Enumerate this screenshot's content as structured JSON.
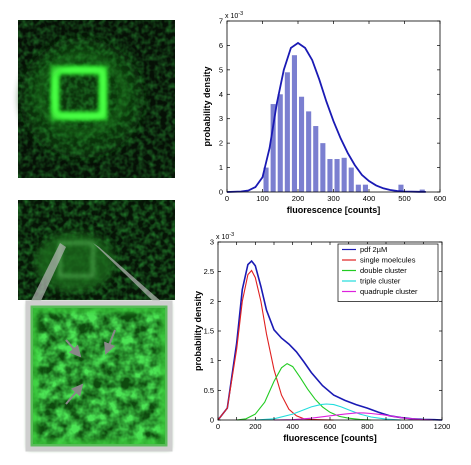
{
  "micrographs": {
    "top": {
      "description_color": "#22c41a"
    },
    "bottom": {
      "description_color": "#22c41a"
    },
    "inset": {
      "arrow_count": 3
    }
  },
  "chart_data": [
    {
      "type": "bar",
      "title": "",
      "xlabel": "fluorescence [counts]",
      "ylabel": "probability density",
      "y_multiplier_label": "x 10",
      "y_multiplier_exp": "-3",
      "xlim": [
        0,
        600
      ],
      "ylim": [
        0,
        7
      ],
      "xticks": [
        0,
        100,
        200,
        300,
        400,
        500,
        600
      ],
      "yticks": [
        0,
        1,
        2,
        3,
        4,
        5,
        6,
        7
      ],
      "bar_width": 20,
      "bar_color": "#7b7fd0",
      "bars": [
        {
          "x": 110,
          "value": 1.0
        },
        {
          "x": 130,
          "value": 3.6
        },
        {
          "x": 150,
          "value": 4.0
        },
        {
          "x": 170,
          "value": 4.9
        },
        {
          "x": 190,
          "value": 5.6
        },
        {
          "x": 210,
          "value": 3.9
        },
        {
          "x": 230,
          "value": 3.3
        },
        {
          "x": 250,
          "value": 2.7
        },
        {
          "x": 270,
          "value": 2.0
        },
        {
          "x": 290,
          "value": 1.35
        },
        {
          "x": 310,
          "value": 1.35
        },
        {
          "x": 330,
          "value": 1.4
        },
        {
          "x": 350,
          "value": 1.0
        },
        {
          "x": 370,
          "value": 0.3
        },
        {
          "x": 390,
          "value": 0.3
        },
        {
          "x": 490,
          "value": 0.3
        },
        {
          "x": 550,
          "value": 0.1
        }
      ],
      "fit_curve": {
        "color": "#1a1ab4",
        "x": [
          0,
          40,
          60,
          80,
          100,
          120,
          140,
          160,
          180,
          200,
          220,
          240,
          260,
          280,
          300,
          320,
          340,
          360,
          380,
          400,
          420,
          440,
          460,
          480,
          500,
          540,
          560
        ],
        "y": [
          0,
          0.02,
          0.06,
          0.2,
          0.6,
          1.8,
          3.6,
          5.0,
          5.9,
          6.1,
          5.9,
          5.4,
          4.6,
          3.7,
          2.9,
          2.2,
          1.6,
          1.1,
          0.7,
          0.45,
          0.27,
          0.15,
          0.08,
          0.04,
          0.02,
          0.01,
          0.005
        ]
      }
    },
    {
      "type": "line",
      "title": "",
      "xlabel": "fluorescence [counts]",
      "ylabel": "probability density",
      "y_multiplier_label": "x 10",
      "y_multiplier_exp": "-3",
      "xlim": [
        0,
        1200
      ],
      "ylim": [
        0,
        3
      ],
      "xticks": [
        0,
        100,
        200,
        300,
        400,
        500,
        600,
        700,
        800,
        900,
        1000,
        1100,
        1200
      ],
      "xtick_labels": [
        "0",
        "",
        "200",
        "",
        "400",
        "",
        "600",
        "",
        "800",
        "",
        "1000",
        "",
        "1200"
      ],
      "yticks": [
        0,
        0.5,
        1,
        1.5,
        2,
        2.5,
        3
      ],
      "ytick_labels": [
        "0",
        "0.5",
        "1",
        "1.5",
        "2",
        "2.5",
        "3"
      ],
      "legend_position": "top-right",
      "series": [
        {
          "name": "pdf 2µM",
          "color": "#1a1ab4",
          "x": [
            0,
            50,
            100,
            130,
            160,
            180,
            200,
            230,
            260,
            300,
            340,
            380,
            420,
            460,
            500,
            560,
            620,
            680,
            740,
            800,
            860,
            920,
            980,
            1040,
            1100,
            1160,
            1200
          ],
          "y": [
            0,
            0.2,
            1.3,
            2.2,
            2.62,
            2.68,
            2.6,
            2.25,
            1.85,
            1.52,
            1.38,
            1.28,
            1.15,
            0.98,
            0.8,
            0.58,
            0.42,
            0.33,
            0.26,
            0.2,
            0.13,
            0.07,
            0.04,
            0.02,
            0.01,
            0.005,
            0
          ]
        },
        {
          "name": "single moelcules",
          "color": "#e02020",
          "x": [
            0,
            50,
            100,
            130,
            160,
            180,
            200,
            230,
            260,
            300,
            340,
            380,
            420,
            460,
            500,
            560,
            620
          ],
          "y": [
            0,
            0.2,
            1.2,
            2.0,
            2.45,
            2.52,
            2.4,
            2.0,
            1.45,
            0.85,
            0.42,
            0.18,
            0.07,
            0.02,
            0.01,
            0.003,
            0
          ]
        },
        {
          "name": "double cluster",
          "color": "#22cc22",
          "x": [
            100,
            150,
            200,
            250,
            300,
            340,
            370,
            400,
            440,
            480,
            520,
            560,
            600,
            650,
            700,
            760,
            820
          ],
          "y": [
            0,
            0.02,
            0.1,
            0.3,
            0.65,
            0.88,
            0.95,
            0.9,
            0.72,
            0.52,
            0.35,
            0.22,
            0.13,
            0.06,
            0.03,
            0.01,
            0
          ]
        },
        {
          "name": "triple cluster",
          "color": "#22dddd",
          "x": [
            200,
            300,
            400,
            450,
            500,
            550,
            580,
            620,
            660,
            700,
            760,
            820,
            900,
            980
          ],
          "y": [
            0,
            0.02,
            0.1,
            0.16,
            0.22,
            0.26,
            0.27,
            0.26,
            0.22,
            0.17,
            0.1,
            0.05,
            0.015,
            0
          ]
        },
        {
          "name": "quadruple cluster",
          "color": "#dd22dd",
          "x": [
            300,
            400,
            500,
            600,
            680,
            740,
            780,
            820,
            880,
            940,
            1000,
            1080,
            1150
          ],
          "y": [
            0,
            0.005,
            0.03,
            0.07,
            0.1,
            0.12,
            0.12,
            0.11,
            0.09,
            0.06,
            0.03,
            0.01,
            0
          ]
        }
      ]
    }
  ]
}
